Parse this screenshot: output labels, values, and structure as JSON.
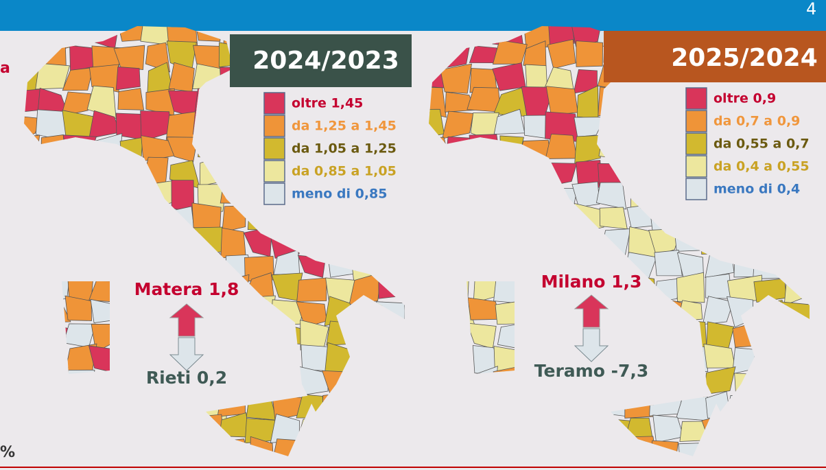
{
  "page_number": "4",
  "left_edge_text": "a",
  "footer_text": "%",
  "maps": [
    {
      "title": "2024/2023",
      "legend": [
        "oltre 1,45",
        "da 1,25 a 1,45",
        "da 1,05 a 1,25",
        "da 0,85 a 1,05",
        "meno di 0,85"
      ],
      "highest": "Matera 1,8",
      "lowest": "Rieti 0,2"
    },
    {
      "title": "2025/2024",
      "legend": [
        "oltre 0,9",
        "da 0,7 a 0,9",
        "da 0,55 a 0,7",
        "da 0,4 a 0,55",
        "meno di 0,4"
      ],
      "highest": "Milano 1,3",
      "lowest": "Teramo -7,3"
    }
  ]
}
